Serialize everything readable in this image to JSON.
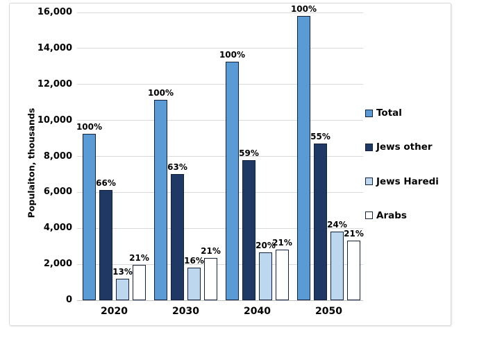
{
  "chart_data": {
    "type": "bar",
    "title": "",
    "xlabel": "",
    "ylabel": "Populaiton, thousands",
    "ylim": [
      0,
      16000
    ],
    "ytick_step": 2000,
    "ytick_labels": [
      "0",
      "2,000",
      "4,000",
      "6,000",
      "8,000",
      "10,000",
      "12,000",
      "14,000",
      "16,000"
    ],
    "categories": [
      "2020",
      "2030",
      "2040",
      "2050"
    ],
    "series": [
      {
        "name": "Total",
        "color": "#5B9BD5",
        "values": [
          9250,
          11150,
          13250,
          15800
        ],
        "labels": [
          "100%",
          "100%",
          "100%",
          "100%"
        ]
      },
      {
        "name": "Jews other",
        "color": "#1F3864",
        "values": [
          6150,
          7000,
          7800,
          8700
        ],
        "labels": [
          "66%",
          "63%",
          "59%",
          "55%"
        ]
      },
      {
        "name": "Jews Haredi",
        "color": "#BDD7EE",
        "values": [
          1200,
          1800,
          2650,
          3800
        ],
        "labels": [
          "13%",
          "16%",
          "20%",
          "24%"
        ]
      },
      {
        "name": "Arabs",
        "color": "#FFFFFF",
        "values": [
          1950,
          2350,
          2800,
          3300
        ],
        "labels": [
          "21%",
          "21%",
          "21%",
          "21%"
        ]
      }
    ],
    "legend_position": "right",
    "grid": true,
    "colors": {
      "gridline": "#D9D9D9",
      "axis_line": "#BFBFBF",
      "bar_border": "#121F38",
      "frame_border": "#D9D9D9",
      "text": "#000000"
    }
  }
}
